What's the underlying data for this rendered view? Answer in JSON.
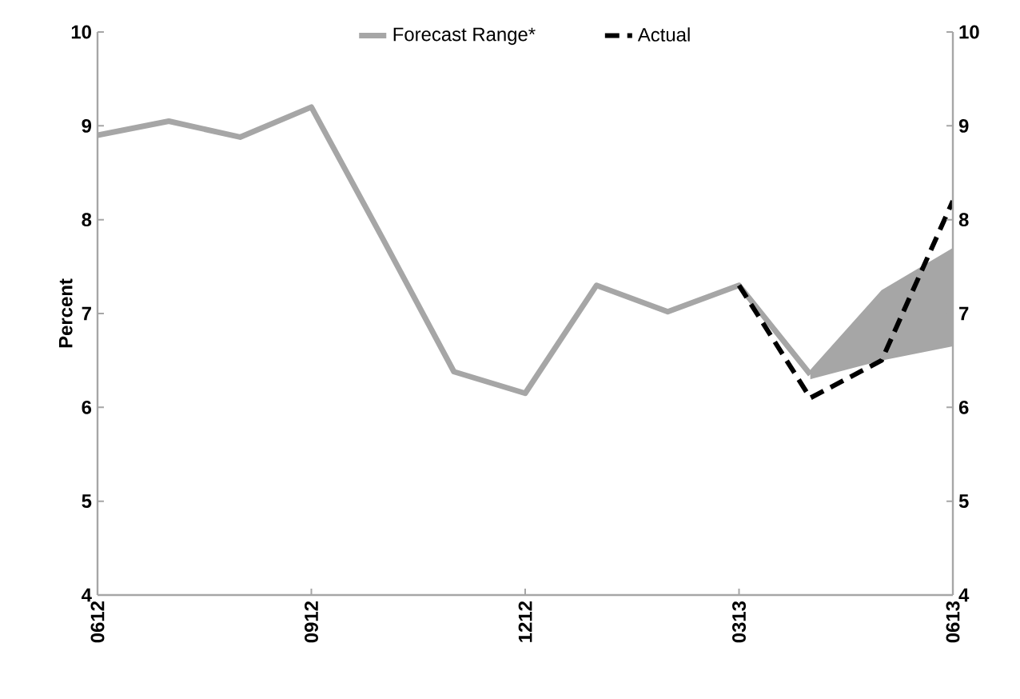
{
  "chart_data": {
    "type": "line",
    "ylabel": "Percent",
    "categories": [
      "0612",
      null,
      null,
      "0912",
      null,
      null,
      "1212",
      null,
      null,
      "0313",
      null,
      null,
      "0613"
    ],
    "series": [
      {
        "name": "Forecast Range*",
        "color": "#a6a6a6",
        "line_style": "solid",
        "values": [
          8.9,
          9.05,
          8.88,
          9.2,
          7.8,
          6.38,
          6.15,
          7.3,
          7.02,
          7.3,
          6.35,
          null,
          null
        ],
        "lower": [
          null,
          null,
          null,
          null,
          null,
          null,
          null,
          null,
          null,
          null,
          6.3,
          6.5,
          6.65
        ],
        "upper": [
          null,
          null,
          null,
          null,
          null,
          null,
          null,
          null,
          null,
          null,
          6.4,
          7.25,
          7.7
        ]
      },
      {
        "name": "Actual",
        "color": "#000000",
        "line_style": "dashed",
        "values": [
          null,
          null,
          null,
          null,
          null,
          null,
          null,
          null,
          null,
          7.3,
          6.1,
          6.5,
          8.2
        ]
      }
    ],
    "ylim": [
      4,
      10
    ],
    "yticks": [
      4,
      5,
      6,
      7,
      8,
      9,
      10
    ],
    "y2lim": [
      4,
      10
    ],
    "y2ticks": [
      4,
      5,
      6,
      7,
      8,
      9,
      10
    ],
    "legend": "top"
  }
}
